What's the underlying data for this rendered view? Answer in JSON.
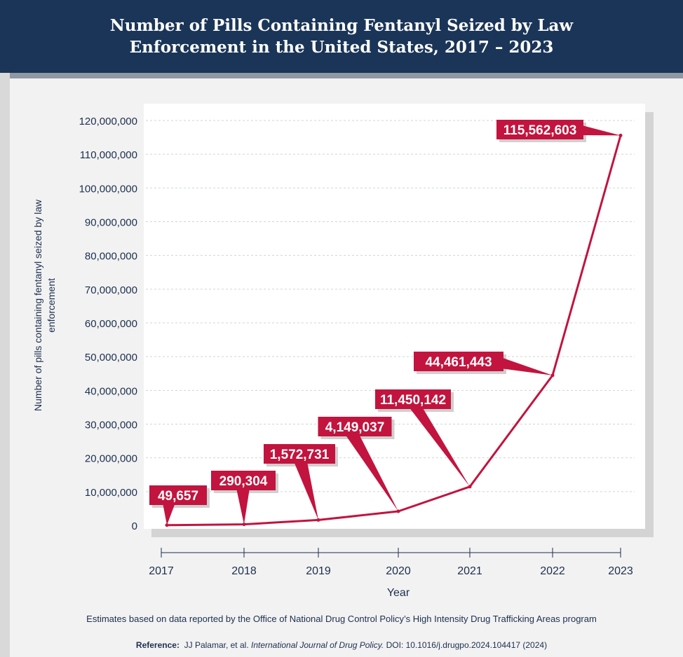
{
  "colors": {
    "header_bg": "#1a3557",
    "series": "#c2143e",
    "axis_text": "#1c2f4e"
  },
  "chart_data": {
    "type": "line",
    "title": "Number of Pills Containing Fentanyl Seized by Law Enforcement in the United States, 2017 – 2023",
    "xlabel": "Year",
    "ylabel": "Number of pills containing fentanyl seized by law enforcement",
    "x": [
      2017,
      2018,
      2019,
      2020,
      2021,
      2022,
      2023
    ],
    "x_tick_labels": [
      "2017",
      "2018",
      "2019",
      "2020",
      "2021",
      "2022",
      "2023"
    ],
    "series": [
      {
        "values": [
          49657,
          290304,
          1572731,
          4149037,
          11450142,
          44461443,
          115562603
        ],
        "data_labels": [
          "49,657",
          "290,304",
          "1,572,731",
          "4,149,037",
          "11,450,142",
          "44,461,443",
          "115,562,603"
        ]
      }
    ],
    "ylim": [
      0,
      120000000
    ],
    "y_ticks": [
      0,
      10000000,
      20000000,
      30000000,
      40000000,
      50000000,
      60000000,
      70000000,
      80000000,
      90000000,
      100000000,
      110000000,
      120000000
    ],
    "y_tick_labels": [
      "0",
      "10,000,000",
      "20,000,000",
      "30,000,000",
      "40,000,000",
      "50,000,000",
      "60,000,000",
      "70,000,000",
      "80,000,000",
      "90,000,000",
      "100,000,000",
      "110,000,000",
      "120,000,000"
    ],
    "grid": "horizontal dashed"
  },
  "footer": {
    "caption": "Estimates based on data reported by the Office of National Drug Control Policy’s High Intensity Drug Trafficking Areas program",
    "reference_label": "Reference:",
    "reference_authors": "JJ Palamar, et al.",
    "reference_journal": "International Journal of Drug Policy.",
    "reference_doi": "DOI: 10.1016/j.drugpo.2024.104417 (2024)"
  }
}
